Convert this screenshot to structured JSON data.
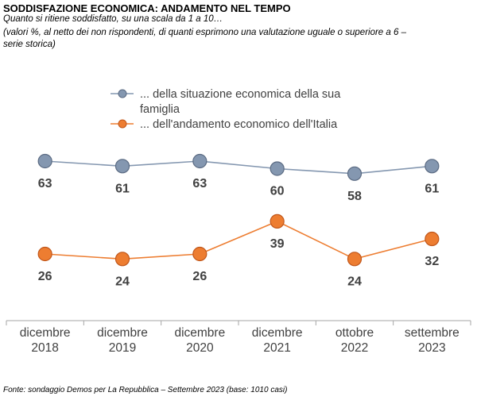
{
  "header": {
    "title": "SODDISFAZIONE ECONOMICA: ANDAMENTO NEL TEMPO",
    "subtitle": "Quanto si ritiene soddisfatto, su una scala da 1 a 10…",
    "note": "(valori %, al netto dei non rispondenti, di quanti esprimono una valutazione uguale o superiore a 6 – serie storica)"
  },
  "footer": {
    "source": "Fonte: sondaggio Demos per La Repubblica – Settembre 2023 (base: 1010 casi)"
  },
  "chart_data": {
    "type": "line",
    "categories": [
      [
        "dicembre",
        "2018"
      ],
      [
        "dicembre",
        "2019"
      ],
      [
        "dicembre",
        "2020"
      ],
      [
        "dicembre",
        "2021"
      ],
      [
        "ottobre",
        "2022"
      ],
      [
        "settembre",
        "2023"
      ]
    ],
    "series": [
      {
        "name": "... della situazione economica della sua famiglia",
        "legend_lines": [
          "... della situazione economica della sua",
          "famiglia"
        ],
        "values": [
          63,
          61,
          63,
          60,
          58,
          61
        ],
        "marker_color": "#8497B0",
        "line_color": "#8497B0",
        "marker_stroke": "#5A6A82"
      },
      {
        "name": "... dell'andamento economico dell'Italia",
        "legend_lines": [
          "... dell'andamento economico dell'Italia"
        ],
        "values": [
          26,
          24,
          26,
          39,
          24,
          32
        ],
        "marker_color": "#ED7D31",
        "line_color": "#ED7D31",
        "marker_stroke": "#C0561A"
      }
    ],
    "ylim": [
      10,
      75
    ],
    "grid": false,
    "legend_position": "top-center",
    "data_labels": "below"
  }
}
